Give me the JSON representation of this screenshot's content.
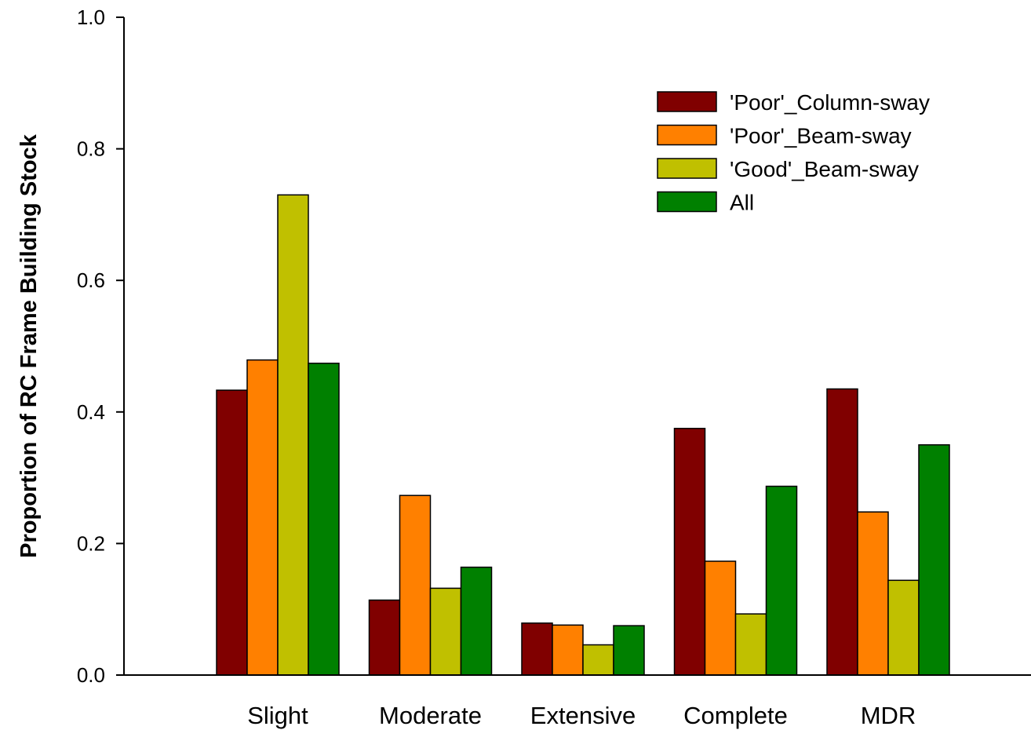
{
  "chart_data": {
    "type": "bar",
    "title": "",
    "xlabel": "",
    "ylabel": "Proportion of RC Frame Building Stock",
    "ylim": [
      0,
      1.0
    ],
    "yticks": [
      "0.0",
      "0.2",
      "0.4",
      "0.6",
      "0.8",
      "1.0"
    ],
    "grid": false,
    "legend_position": "top-right",
    "categories": [
      "Slight",
      "Moderate",
      "Extensive",
      "Complete",
      "MDR"
    ],
    "series": [
      {
        "name": "'Poor'_Column-sway",
        "color": "#800000",
        "values": [
          0.433,
          0.114,
          0.079,
          0.375,
          0.435
        ]
      },
      {
        "name": "'Poor'_Beam-sway",
        "color": "#ff8000",
        "values": [
          0.479,
          0.273,
          0.076,
          0.173,
          0.248
        ]
      },
      {
        "name": "'Good'_Beam-sway",
        "color": "#c0c000",
        "values": [
          0.73,
          0.132,
          0.046,
          0.093,
          0.144
        ]
      },
      {
        "name": "All",
        "color": "#008000",
        "values": [
          0.474,
          0.164,
          0.075,
          0.287,
          0.35
        ]
      }
    ]
  }
}
